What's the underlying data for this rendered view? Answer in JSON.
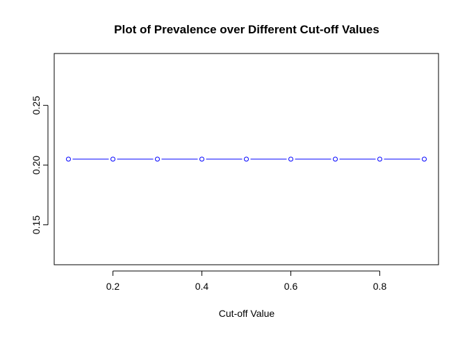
{
  "chart_data": {
    "type": "line",
    "title": "Plot of Prevalence over Different Cut-off Values",
    "xlabel": "Cut-off Value",
    "ylabel": "",
    "x": [
      0.1,
      0.2,
      0.3,
      0.4,
      0.5,
      0.6,
      0.7,
      0.8,
      0.9
    ],
    "series": [
      {
        "values": [
          0.205,
          0.205,
          0.205,
          0.205,
          0.205,
          0.205,
          0.205,
          0.205,
          0.205
        ]
      }
    ],
    "xlim": [
      0.068,
      0.932
    ],
    "ylim": [
      0.1166,
      0.2934
    ],
    "x_ticks": [
      0.2,
      0.4,
      0.6,
      0.8
    ],
    "x_tick_labels": [
      "0.2",
      "0.4",
      "0.6",
      "0.8"
    ],
    "y_ticks": [
      0.15,
      0.2,
      0.25
    ],
    "y_tick_labels": [
      "0.15",
      "0.20",
      "0.25"
    ],
    "line_style": "b",
    "marker": "open-circle",
    "color": "#0000ff",
    "grid": false,
    "legend": "none"
  }
}
